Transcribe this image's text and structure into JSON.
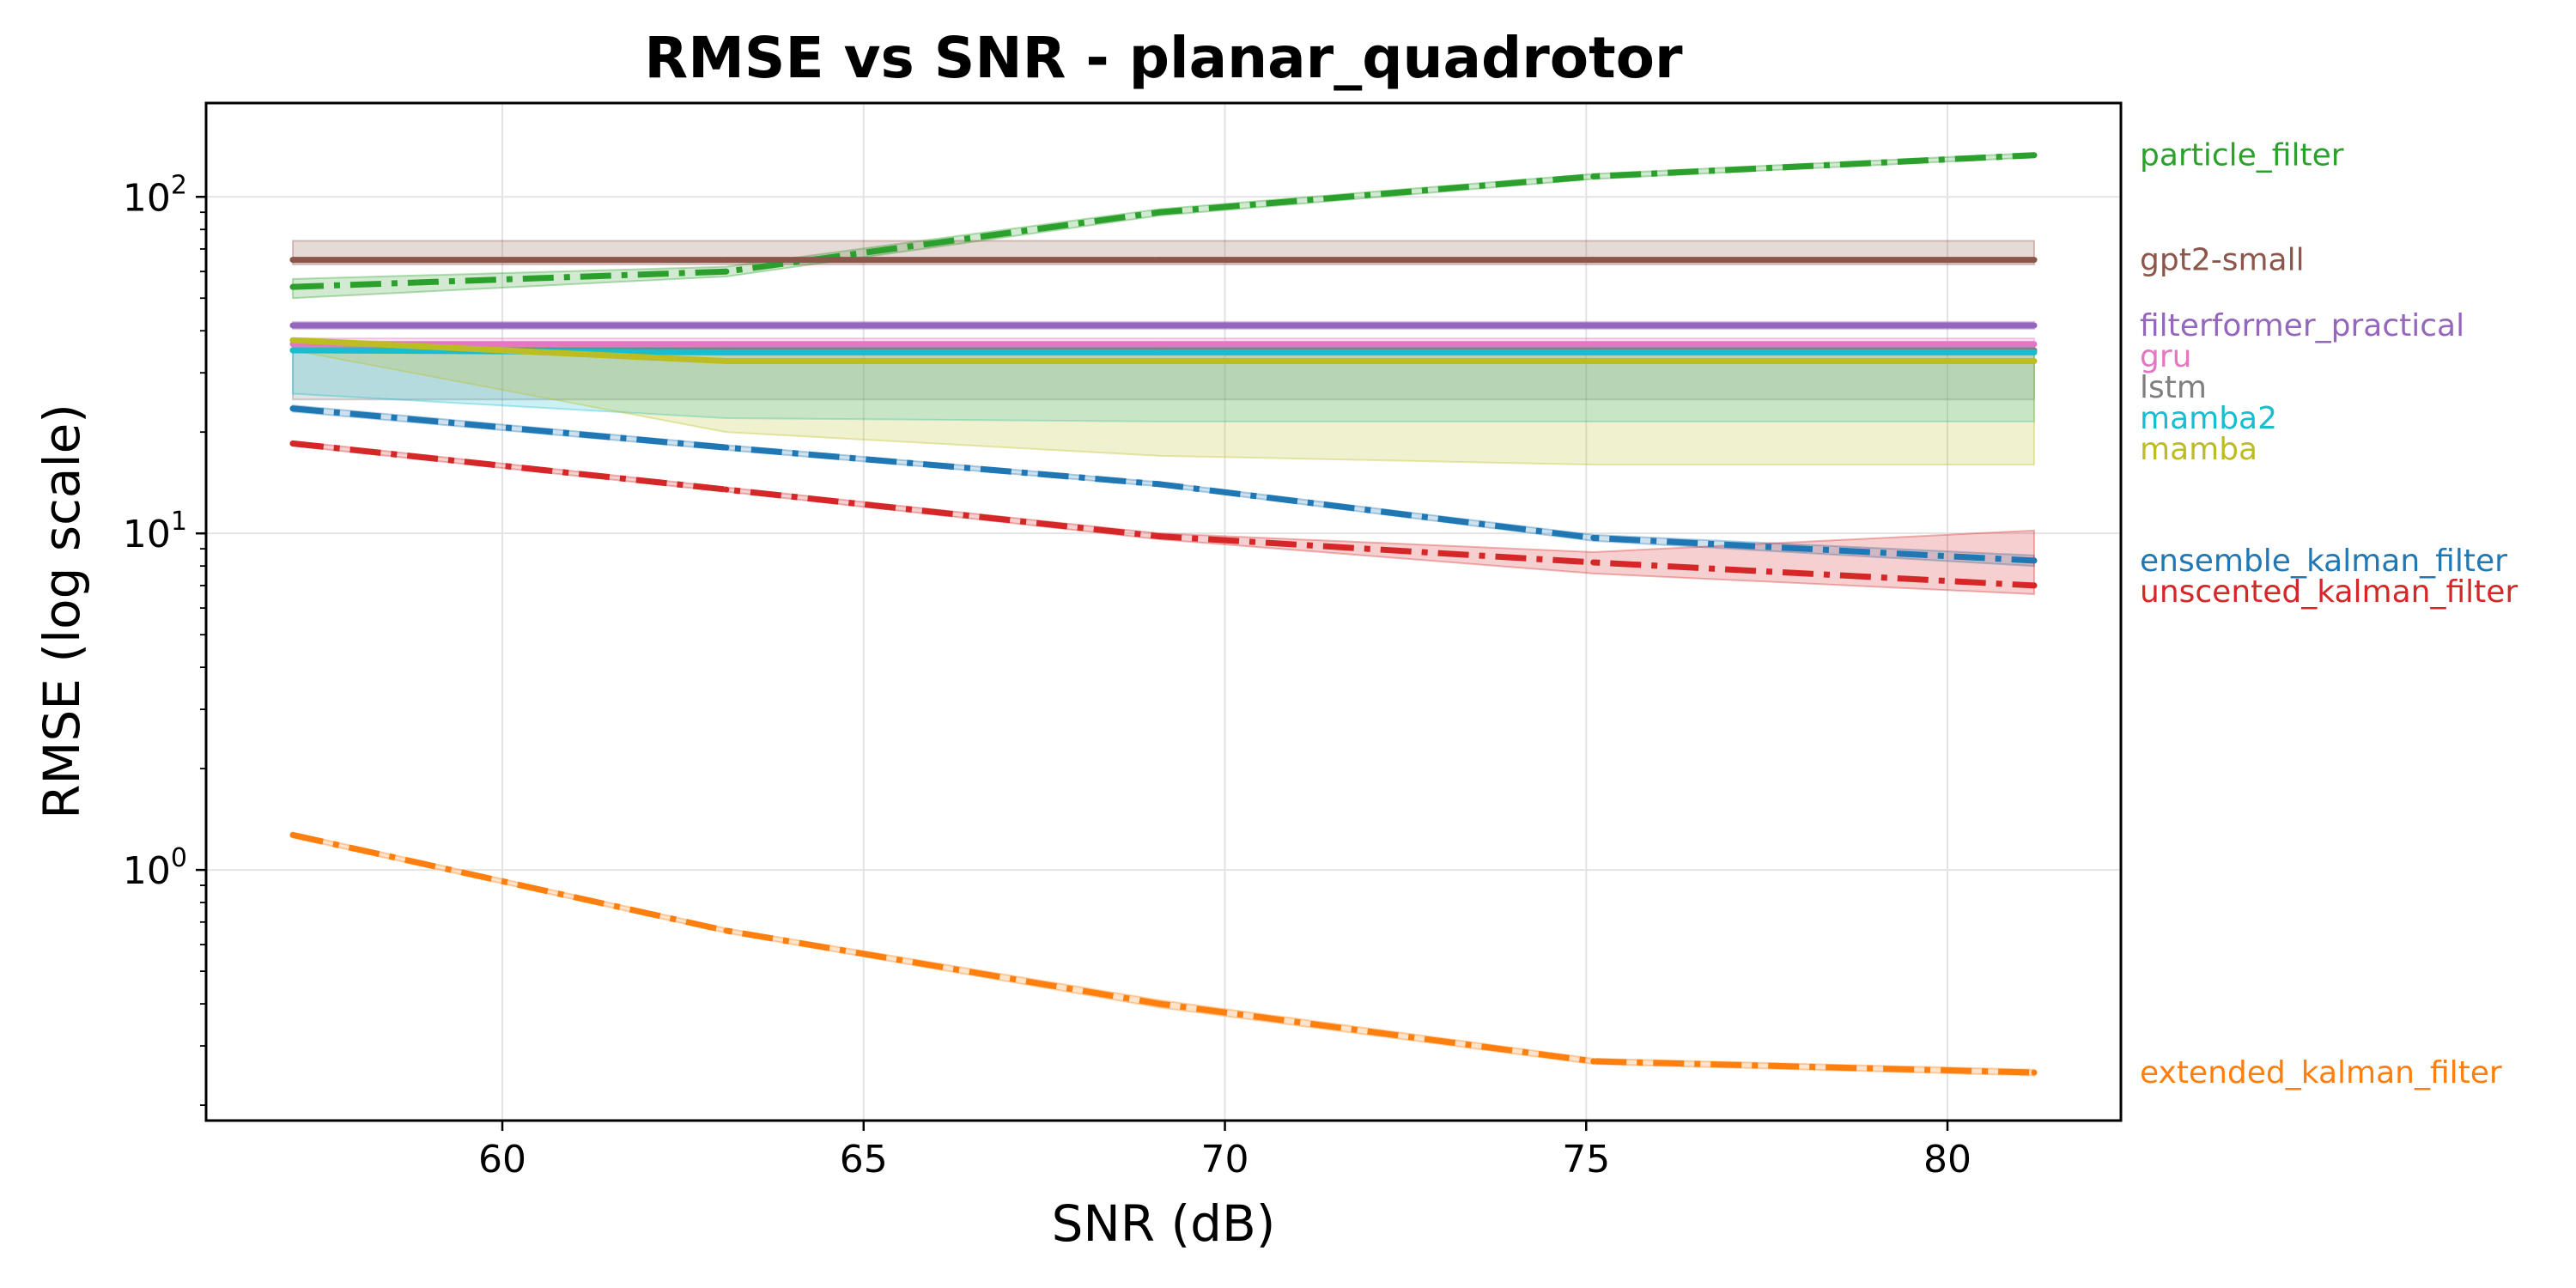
{
  "chart_data": {
    "type": "line",
    "title": "RMSE vs SNR - planar_quadrotor",
    "xlabel": "SNR (dB)",
    "ylabel": "RMSE (log scale)",
    "x_scale": "linear",
    "y_scale": "log",
    "xlim": [
      55.9,
      82.4
    ],
    "ylim": [
      0.18,
      190
    ],
    "x_ticks": [
      60,
      65,
      70,
      75,
      80
    ],
    "x_tick_labels": [
      "60",
      "65",
      "70",
      "75",
      "80"
    ],
    "y_ticks": [
      1,
      10,
      100
    ],
    "y_tick_labels": [
      {
        "base": "10",
        "exp": "0"
      },
      {
        "base": "10",
        "exp": "1"
      },
      {
        "base": "10",
        "exp": "2"
      }
    ],
    "grid": true,
    "legend": "labels at right end of each series",
    "series": [
      {
        "name": "particle_filter",
        "color": "#2ca02c",
        "style": "dashdot",
        "x": [
          57.1,
          63.1,
          69.1,
          75.1,
          81.2
        ],
        "y": [
          54,
          60,
          90,
          115,
          133
        ],
        "band_low": [
          50,
          58,
          88,
          113,
          131
        ],
        "band_high": [
          57,
          62,
          92,
          117,
          135
        ]
      },
      {
        "name": "gpt2-small",
        "color": "#8c564b",
        "style": "solid",
        "x": [
          57.1,
          63.1,
          69.1,
          75.1,
          81.2
        ],
        "y": [
          65,
          65,
          65,
          65,
          65
        ],
        "band_low": [
          63,
          63,
          63,
          63,
          63
        ],
        "band_high": [
          74,
          74,
          74,
          74,
          74
        ]
      },
      {
        "name": "filterformer_practical",
        "color": "#9467bd",
        "style": "solid",
        "x": [
          57.1,
          63.1,
          69.1,
          75.1,
          81.2
        ],
        "y": [
          41.5,
          41.5,
          41.5,
          41.5,
          41.5
        ],
        "band_low": [
          40.5,
          40.5,
          40.5,
          40.5,
          40.5
        ],
        "band_high": [
          42.5,
          42.5,
          42.5,
          42.5,
          42.5
        ]
      },
      {
        "name": "gru",
        "color": "#e377c2",
        "style": "solid",
        "x": [
          57.1,
          63.1,
          69.1,
          75.1,
          81.2
        ],
        "y": [
          36.5,
          36.5,
          36.5,
          36.5,
          36.5
        ],
        "band_low": [
          35.5,
          35.5,
          35.5,
          35.5,
          35.5
        ],
        "band_high": [
          38,
          38,
          38,
          38,
          38
        ]
      },
      {
        "name": "lstm",
        "color": "#7f7f7f",
        "style": "solid",
        "x": [
          57.1,
          63.1,
          69.1,
          75.1,
          81.2
        ],
        "y": [
          35,
          35,
          35,
          35,
          35
        ],
        "band_low": [
          25,
          25,
          25,
          25,
          25
        ],
        "band_high": [
          36,
          36,
          36,
          36,
          36
        ]
      },
      {
        "name": "mamba2",
        "color": "#17becf",
        "style": "solid",
        "x": [
          57.1,
          63.1,
          69.1,
          75.1,
          81.2
        ],
        "y": [
          35,
          34.5,
          34.5,
          34.5,
          34.5
        ],
        "band_low": [
          26,
          22,
          21.5,
          21.5,
          21.5
        ],
        "band_high": [
          37,
          36,
          36,
          36,
          36
        ]
      },
      {
        "name": "mamba",
        "color": "#bcbd22",
        "style": "solid",
        "x": [
          57.1,
          63.1,
          69.1,
          75.1,
          81.2
        ],
        "y": [
          37.5,
          32.5,
          32.5,
          32.5,
          32.5
        ],
        "band_low": [
          35,
          20,
          17,
          16,
          16
        ],
        "band_high": [
          38,
          34,
          34,
          34,
          34
        ]
      },
      {
        "name": "ensemble_kalman_filter",
        "color": "#1f77b4",
        "style": "dashdot",
        "x": [
          57.1,
          63.1,
          69.1,
          75.1,
          81.2
        ],
        "y": [
          23.5,
          18,
          14,
          9.7,
          8.3
        ],
        "band_low": [
          23,
          17.7,
          13.8,
          9.5,
          8.0
        ],
        "band_high": [
          24,
          18.3,
          14.2,
          9.9,
          8.6
        ]
      },
      {
        "name": "unscented_kalman_filter",
        "color": "#d62728",
        "style": "dashdot",
        "x": [
          57.1,
          63.1,
          69.1,
          75.1,
          81.2
        ],
        "y": [
          18.5,
          13.5,
          9.8,
          8.2,
          7.0
        ],
        "band_low": [
          18.2,
          13.3,
          9.6,
          7.6,
          6.6
        ],
        "band_high": [
          18.8,
          13.7,
          10.0,
          8.8,
          10.2
        ]
      },
      {
        "name": "extended_kalman_filter",
        "color": "#ff7f0e",
        "style": "dashdot",
        "x": [
          57.1,
          63.1,
          69.1,
          75.1,
          81.2
        ],
        "y": [
          1.27,
          0.66,
          0.4,
          0.27,
          0.25
        ],
        "band_low": [
          1.25,
          0.65,
          0.39,
          0.265,
          0.245
        ],
        "band_high": [
          1.29,
          0.67,
          0.41,
          0.275,
          0.255
        ]
      }
    ]
  }
}
